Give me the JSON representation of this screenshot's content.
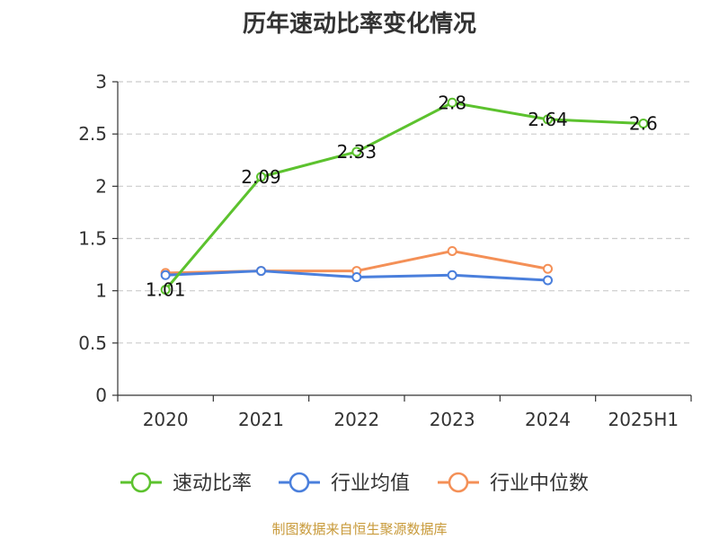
{
  "chart_data": {
    "type": "line",
    "title": "历年速动比率变化情况",
    "categories": [
      "2020",
      "2021",
      "2022",
      "2023",
      "2024",
      "2025H1"
    ],
    "ylim": [
      0,
      3
    ],
    "yticks": [
      "0",
      "0.5",
      "1",
      "1.5",
      "2",
      "2.5",
      "3"
    ],
    "grid": true,
    "legend_position": "bottom",
    "series": [
      {
        "name": "速动比率",
        "color": "#5cc22e",
        "values": [
          1.01,
          2.09,
          2.33,
          2.8,
          2.64,
          2.6
        ],
        "labels": [
          "1.01",
          "2.09",
          "2.33",
          "2.8",
          "2.64",
          "2.6"
        ]
      },
      {
        "name": "行业均值",
        "color": "#4a7fdc",
        "values": [
          1.15,
          1.19,
          1.13,
          1.15,
          1.1,
          null
        ]
      },
      {
        "name": "行业中位数",
        "color": "#f49057",
        "values": [
          1.17,
          1.19,
          1.19,
          1.38,
          1.21,
          null
        ]
      }
    ]
  },
  "source": "制图数据来自恒生聚源数据库"
}
